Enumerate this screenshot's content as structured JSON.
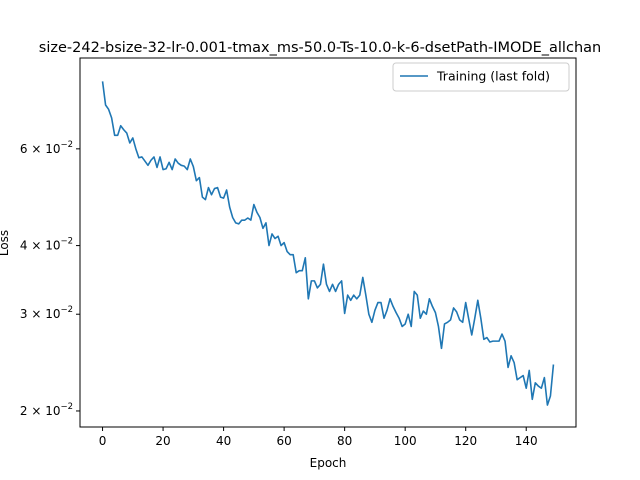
{
  "chart_data": {
    "type": "line",
    "title": "size-242-bsize-32-lr-0.001-tmax_ms-50.0-Ts-10.0-k-6-dsetPath-IMODE_allchan",
    "xlabel": "Epoch",
    "ylabel": "Loss",
    "xlim": [
      -7.45,
      156.45
    ],
    "ylim": [
      0.0187,
      0.0878
    ],
    "yscale": "log",
    "x_ticks": [
      0,
      20,
      40,
      60,
      80,
      100,
      120,
      140
    ],
    "x_tick_labels": [
      "0",
      "20",
      "40",
      "60",
      "80",
      "100",
      "120",
      "140"
    ],
    "y_ticks": [
      0.02,
      0.03,
      0.04,
      0.06
    ],
    "y_tick_labels": [
      "2 × 10",
      "3 × 10",
      "4 × 10",
      "6 × 10"
    ],
    "y_tick_exponent": "−2",
    "grid": false,
    "legend_position": "top-right",
    "series": [
      {
        "name": "Training (last fold)",
        "color": "#1f77b4",
        "x": [
          0,
          1,
          2,
          3,
          4,
          5,
          6,
          7,
          8,
          9,
          10,
          11,
          12,
          13,
          14,
          15,
          16,
          17,
          18,
          19,
          20,
          21,
          22,
          23,
          24,
          25,
          26,
          27,
          28,
          29,
          30,
          31,
          32,
          33,
          34,
          35,
          36,
          37,
          38,
          39,
          40,
          41,
          42,
          43,
          44,
          45,
          46,
          47,
          48,
          49,
          50,
          51,
          52,
          53,
          54,
          55,
          56,
          57,
          58,
          59,
          60,
          61,
          62,
          63,
          64,
          65,
          66,
          67,
          68,
          69,
          70,
          71,
          72,
          73,
          74,
          75,
          76,
          77,
          78,
          79,
          80,
          81,
          82,
          83,
          84,
          85,
          86,
          87,
          88,
          89,
          90,
          91,
          92,
          93,
          94,
          95,
          96,
          97,
          98,
          99,
          100,
          101,
          102,
          103,
          104,
          105,
          106,
          107,
          108,
          109,
          110,
          111,
          112,
          113,
          114,
          115,
          116,
          117,
          118,
          119,
          120,
          121,
          122,
          123,
          124,
          125,
          126,
          127,
          128,
          129,
          130,
          131,
          132,
          133,
          134,
          135,
          136,
          137,
          138,
          139,
          140,
          141,
          142,
          143,
          144,
          145,
          146,
          147,
          148,
          149
        ],
        "values": [
          0.0796,
          0.0721,
          0.0708,
          0.0683,
          0.0635,
          0.0635,
          0.0661,
          0.065,
          0.0641,
          0.0615,
          0.0628,
          0.06,
          0.0578,
          0.058,
          0.057,
          0.056,
          0.0572,
          0.058,
          0.0555,
          0.058,
          0.055,
          0.0552,
          0.0567,
          0.055,
          0.0575,
          0.0565,
          0.056,
          0.0558,
          0.055,
          0.0575,
          0.0557,
          0.0525,
          0.0532,
          0.049,
          0.0485,
          0.051,
          0.0495,
          0.0508,
          0.051,
          0.049,
          0.0488,
          0.0505,
          0.047,
          0.045,
          0.044,
          0.0438,
          0.0445,
          0.0445,
          0.0449,
          0.0445,
          0.0475,
          0.046,
          0.045,
          0.043,
          0.044,
          0.04,
          0.042,
          0.0412,
          0.0416,
          0.04,
          0.0405,
          0.039,
          0.0385,
          0.0385,
          0.0357,
          0.036,
          0.036,
          0.038,
          0.032,
          0.0345,
          0.0345,
          0.0335,
          0.034,
          0.037,
          0.034,
          0.033,
          0.034,
          0.033,
          0.034,
          0.0345,
          0.0301,
          0.0325,
          0.0318,
          0.0325,
          0.032,
          0.0325,
          0.035,
          0.0325,
          0.03,
          0.029,
          0.0305,
          0.0315,
          0.0315,
          0.0295,
          0.0305,
          0.032,
          0.031,
          0.0302,
          0.0295,
          0.0285,
          0.0288,
          0.03,
          0.0285,
          0.033,
          0.0325,
          0.0295,
          0.0304,
          0.03,
          0.032,
          0.031,
          0.0302,
          0.0285,
          0.026,
          0.0288,
          0.029,
          0.0293,
          0.0308,
          0.0303,
          0.0293,
          0.029,
          0.0315,
          0.0294,
          0.0275,
          0.0295,
          0.0318,
          0.0295,
          0.027,
          0.0272,
          0.0267,
          0.0268,
          0.0268,
          0.0268,
          0.0276,
          0.0268,
          0.024,
          0.0252,
          0.0245,
          0.0228,
          0.023,
          0.0232,
          0.022,
          0.0237,
          0.021,
          0.0225,
          0.0222,
          0.022,
          0.023,
          0.0205,
          0.0213,
          0.0243
        ]
      }
    ]
  }
}
